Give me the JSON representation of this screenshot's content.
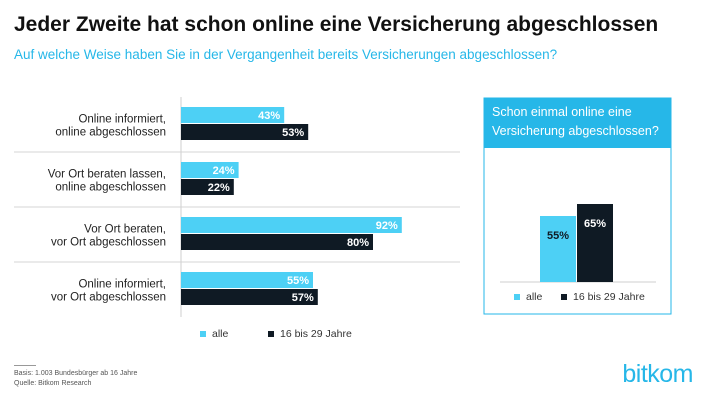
{
  "header": {
    "title": "Jeder Zweite hat schon online eine Versicherung abgeschlossen",
    "subtitle": "Auf welche Weise haben Sie in der Vergangenheit bereits Versicherungen abgeschlossen?"
  },
  "chart_data": [
    {
      "type": "bar",
      "orientation": "horizontal",
      "categories": [
        [
          "Online informiert,",
          "online abgeschlossen"
        ],
        [
          "Vor Ort beraten lassen,",
          "online abgeschlossen"
        ],
        [
          "Vor Ort beraten,",
          "vor Ort abgeschlossen"
        ],
        [
          "Online informiert,",
          "vor Ort abgeschlossen"
        ]
      ],
      "series": [
        {
          "name": "alle",
          "values": [
            43,
            24,
            92,
            55
          ],
          "color": "#4dd0f5"
        },
        {
          "name": "16 bis 29 Jahre",
          "values": [
            53,
            22,
            80,
            57
          ],
          "color": "#0f1a24"
        }
      ],
      "value_suffix": "%",
      "xlim": [
        0,
        100
      ],
      "legend_position": "bottom"
    },
    {
      "type": "bar",
      "title": "Schon einmal online eine Versicherung abgeschlossen?",
      "categories": [
        ""
      ],
      "series": [
        {
          "name": "alle",
          "values": [
            55
          ],
          "color": "#4dd0f5"
        },
        {
          "name": "16 bis 29 Jahre",
          "values": [
            65
          ],
          "color": "#0f1a24"
        }
      ],
      "value_suffix": "%",
      "ylim": [
        0,
        100
      ],
      "legend_position": "bottom"
    }
  ],
  "footer": {
    "basis": "Basis: 1.003 Bundesbürger ab 16 Jahre",
    "source": "Quelle: Bitkom Research",
    "logo": "bitkom"
  }
}
